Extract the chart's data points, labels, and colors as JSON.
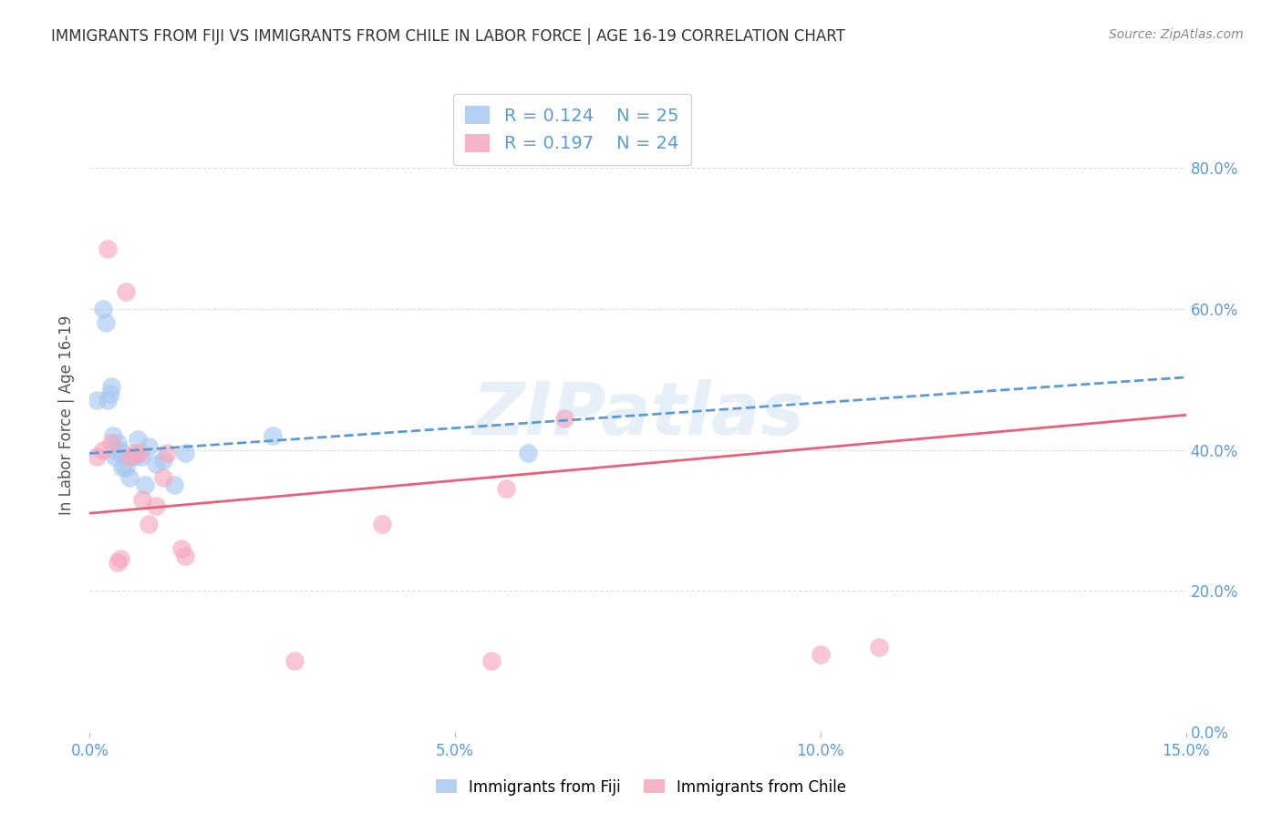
{
  "title": "IMMIGRANTS FROM FIJI VS IMMIGRANTS FROM CHILE IN LABOR FORCE | AGE 16-19 CORRELATION CHART",
  "source": "Source: ZipAtlas.com",
  "ylabel_label": "In Labor Force | Age 16-19",
  "xlim": [
    0.0,
    0.15
  ],
  "ylim": [
    0.0,
    0.9
  ],
  "xticks": [
    0.0,
    0.05,
    0.1,
    0.15
  ],
  "yticks": [
    0.0,
    0.2,
    0.4,
    0.6,
    0.8
  ],
  "fiji_R": "0.124",
  "fiji_N": "25",
  "chile_R": "0.197",
  "chile_N": "24",
  "fiji_color": "#A8C8F0",
  "chile_color": "#F5A8BE",
  "fiji_line_color": "#5B9BD5",
  "chile_line_color": "#E8607A",
  "fiji_scatter_x": [
    0.001,
    0.0018,
    0.0022,
    0.0025,
    0.0028,
    0.003,
    0.0032,
    0.0035,
    0.0038,
    0.004,
    0.0042,
    0.0045,
    0.005,
    0.0055,
    0.006,
    0.0065,
    0.007,
    0.0075,
    0.008,
    0.009,
    0.01,
    0.0115,
    0.013,
    0.025,
    0.06
  ],
  "fiji_scatter_y": [
    0.47,
    0.6,
    0.58,
    0.47,
    0.48,
    0.49,
    0.42,
    0.39,
    0.41,
    0.395,
    0.4,
    0.375,
    0.375,
    0.36,
    0.39,
    0.415,
    0.39,
    0.35,
    0.405,
    0.38,
    0.385,
    0.35,
    0.395,
    0.42,
    0.395
  ],
  "chile_scatter_x": [
    0.001,
    0.0018,
    0.0025,
    0.003,
    0.0038,
    0.0042,
    0.005,
    0.0055,
    0.0062,
    0.0068,
    0.0072,
    0.008,
    0.009,
    0.01,
    0.0105,
    0.0125,
    0.013,
    0.028,
    0.04,
    0.055,
    0.057,
    0.065,
    0.1,
    0.108
  ],
  "chile_scatter_y": [
    0.39,
    0.4,
    0.685,
    0.41,
    0.24,
    0.245,
    0.625,
    0.39,
    0.395,
    0.395,
    0.33,
    0.295,
    0.32,
    0.36,
    0.395,
    0.26,
    0.25,
    0.1,
    0.295,
    0.1,
    0.345,
    0.445,
    0.11,
    0.12
  ],
  "fiji_line_y_intercept": 0.395,
  "fiji_line_slope": 0.72,
  "chile_line_y_intercept": 0.31,
  "chile_line_slope": 0.93,
  "watermark_text": "ZIPatlas",
  "background_color": "#FFFFFF",
  "grid_color": "#DDDDDD",
  "title_color": "#333333",
  "legend_label1": "Immigrants from Fiji",
  "legend_label2": "Immigrants from Chile",
  "axis_label_color": "#5B9BD5",
  "source_color": "#888888"
}
